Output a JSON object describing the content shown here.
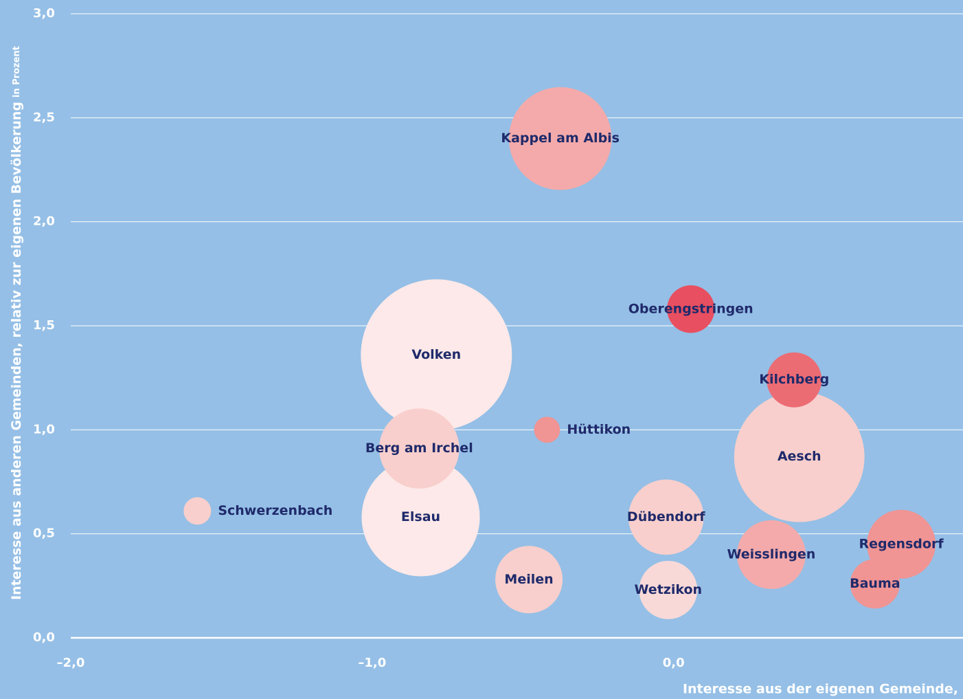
{
  "chart_data": {
    "type": "bubble",
    "y_axis_label": "Interesse aus anderen Gemeinden, relativ zur eigenen Bevölkerung",
    "y_axis_unit": "in Prozent",
    "x_axis_label": "Interesse aus der eigenen Gemeinde,",
    "xlim": [
      -2.0,
      0.96
    ],
    "ylim": [
      0.0,
      3.0
    ],
    "xticks": [
      {
        "value": -2.0,
        "label": "–2,0"
      },
      {
        "value": -1.0,
        "label": "–1,0"
      },
      {
        "value": 0.0,
        "label": "0,0"
      }
    ],
    "yticks": [
      {
        "value": 0.0,
        "label": "0,0"
      },
      {
        "value": 0.5,
        "label": "0,5"
      },
      {
        "value": 1.0,
        "label": "1,0"
      },
      {
        "value": 1.5,
        "label": "1,5"
      },
      {
        "value": 2.0,
        "label": "2,0"
      },
      {
        "value": 2.5,
        "label": "2,5"
      },
      {
        "value": 3.0,
        "label": "3,0"
      }
    ],
    "grid": true,
    "labels": [
      "Kappel am Albis",
      "Volken",
      "Elsau",
      "Berg am Irchel",
      "Oberengstringen",
      "Aesch",
      "Kilchberg",
      "Hüttikon",
      "Schwerzenbach",
      "Dübendorf",
      "Regensdorf",
      "Weisslingen",
      "Meilen",
      "Wetzikon",
      "Bauma"
    ],
    "x": [
      -0.376,
      -0.787,
      -0.839,
      -0.844,
      0.057,
      0.417,
      0.4,
      -0.42,
      -1.58,
      -0.025,
      0.755,
      0.324,
      -0.48,
      -0.018,
      0.668
    ],
    "values": [
      2.4,
      1.36,
      0.58,
      0.91,
      1.58,
      0.87,
      1.24,
      1.0,
      0.61,
      0.58,
      0.45,
      0.4,
      0.28,
      0.23,
      0.26
    ],
    "sizes": [
      56,
      121,
      74,
      34,
      12,
      90,
      16,
      3.6,
      4,
      30,
      25,
      25,
      24,
      18,
      13
    ],
    "colors": [
      "#f4aaaa",
      "#fde9e9",
      "#fde9e9",
      "#f8cfcc",
      "#e84f60",
      "#f8cfcc",
      "#ec6c74",
      "#f09494",
      "#f8cfcc",
      "#f8cfcc",
      "#f09494",
      "#f4aaaa",
      "#f8cfcc",
      "#f8d9d7",
      "#f09494"
    ]
  }
}
